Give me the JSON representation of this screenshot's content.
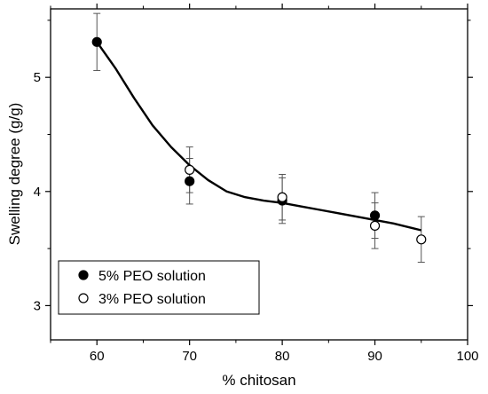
{
  "chart_data": {
    "type": "scatter",
    "title": "",
    "xlabel": "% chitosan",
    "ylabel": "Swelling degree (g/g)",
    "xlim": [
      55,
      100
    ],
    "ylim": [
      2.7,
      5.6
    ],
    "x_ticks": [
      60,
      70,
      80,
      90,
      100
    ],
    "y_ticks": [
      3,
      4,
      5
    ],
    "grid": false,
    "legend_position": "bottom-left",
    "series": [
      {
        "name": "5% PEO solution",
        "marker": "filled-circle",
        "color": "#000000",
        "x": [
          60,
          70,
          80,
          90
        ],
        "y": [
          5.31,
          4.09,
          3.92,
          3.79
        ],
        "y_err": [
          0.25,
          0.2,
          0.2,
          0.2
        ]
      },
      {
        "name": "3% PEO solution",
        "marker": "open-circle",
        "color": "#000000",
        "x": [
          70,
          80,
          90,
          95
        ],
        "y": [
          4.19,
          3.95,
          3.7,
          3.58
        ],
        "y_err": [
          0.2,
          0.2,
          0.2,
          0.2
        ]
      }
    ],
    "fit_curve": {
      "color": "#000000",
      "x": [
        60,
        62,
        64,
        66,
        68,
        70,
        72,
        74,
        76,
        78,
        80,
        82,
        84,
        86,
        88,
        90,
        92,
        94,
        95
      ],
      "y": [
        5.31,
        5.08,
        4.82,
        4.58,
        4.39,
        4.23,
        4.1,
        4.0,
        3.95,
        3.92,
        3.9,
        3.87,
        3.84,
        3.81,
        3.78,
        3.75,
        3.72,
        3.68,
        3.66
      ]
    }
  }
}
